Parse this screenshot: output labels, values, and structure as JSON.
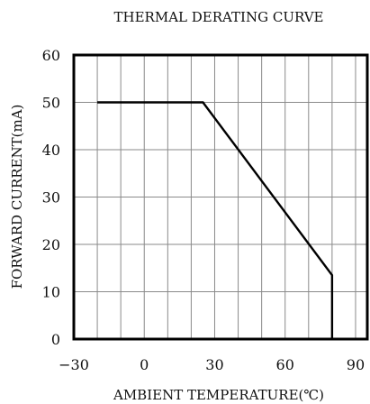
{
  "chart_data": {
    "type": "line",
    "title": "THERMAL DERATING CURVE",
    "xlabel": "AMBIENT TEMPERATURE(℃)",
    "ylabel": "FORWARD CURRENT(mA)",
    "xlim": [
      -30,
      95
    ],
    "ylim": [
      0,
      60
    ],
    "xticks": [
      -30,
      0,
      30,
      60,
      90
    ],
    "yticks": [
      0,
      10,
      20,
      30,
      40,
      50,
      60
    ],
    "xtick_labels": [
      "−30",
      "0",
      "30",
      "60",
      "90"
    ],
    "ytick_labels": [
      "0",
      "10",
      "20",
      "30",
      "40",
      "50",
      "60"
    ],
    "x_minor_step": 10,
    "grid": true,
    "series": [
      {
        "x": [
          -20,
          25,
          80,
          80
        ],
        "y": [
          50,
          50,
          13.5,
          0
        ]
      }
    ]
  }
}
